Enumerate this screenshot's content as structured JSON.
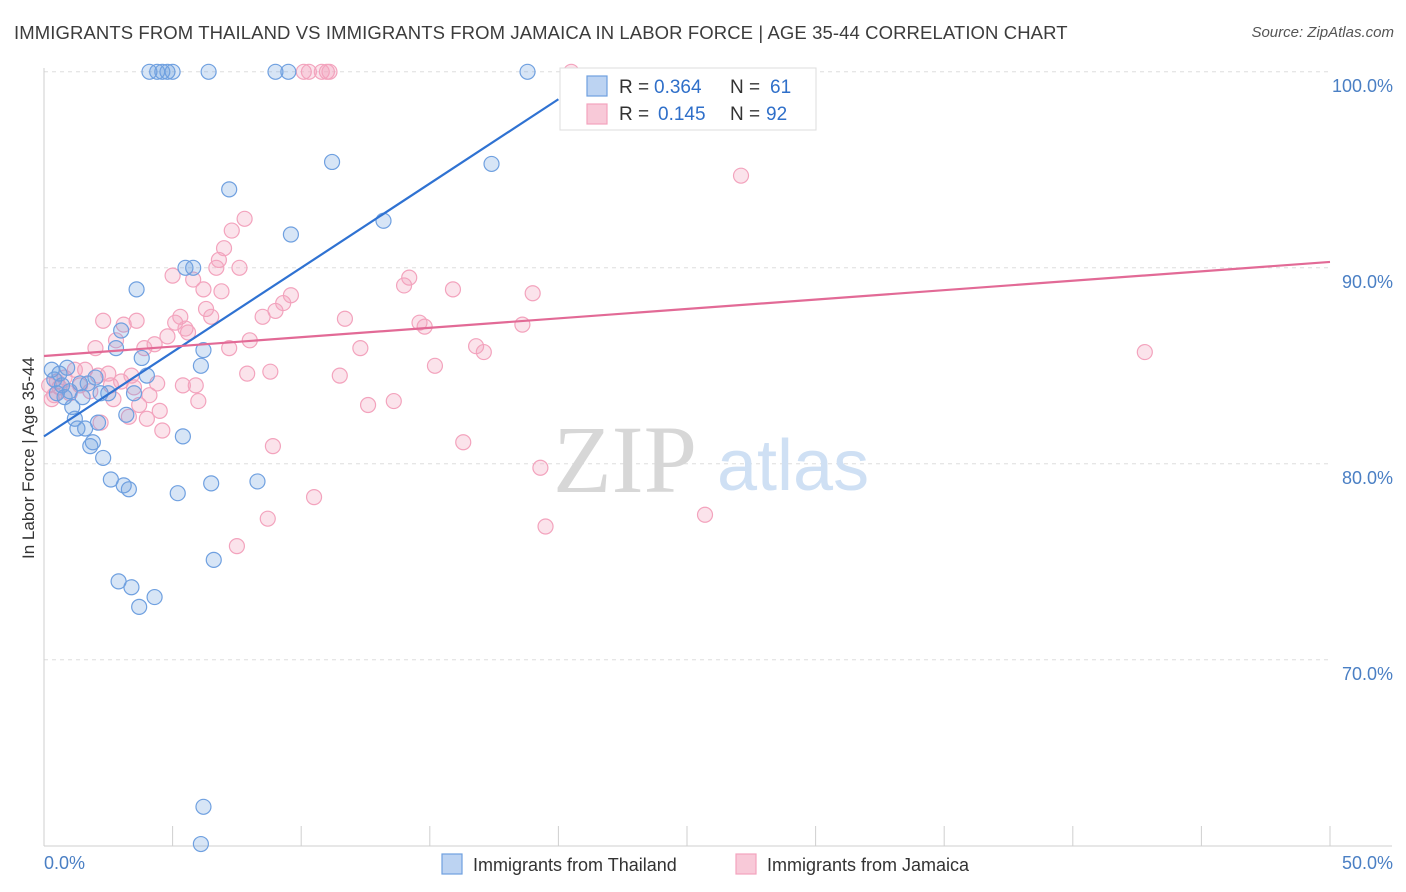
{
  "header": {
    "title": "IMMIGRANTS FROM THAILAND VS IMMIGRANTS FROM JAMAICA IN LABOR FORCE | AGE 35-44 CORRELATION CHART",
    "source": "Source: ZipAtlas.com"
  },
  "watermark": {
    "zip": "ZIP",
    "atlas": "atlas"
  },
  "chart_data": {
    "type": "scatter",
    "ylabel": "In Labor Force | Age 35-44",
    "xlim": [
      0,
      50
    ],
    "ylim": [
      60.5,
      100.5
    ],
    "x_tick_labels": [
      "0.0%",
      "50.0%"
    ],
    "y_ticks": [
      {
        "value": 100,
        "label": "100.0%"
      },
      {
        "value": 90,
        "label": "90.0%"
      },
      {
        "value": 80,
        "label": "80.0%"
      },
      {
        "value": 70,
        "label": "70.0%"
      }
    ],
    "colors": {
      "thailand": "#6fa0e0",
      "jamaica": "#f3a3bd",
      "thailand_line": "#2f72d2",
      "jamaica_line": "#e26a96",
      "tick_text": "#4a7fc4"
    },
    "legend": {
      "r_label": "R =",
      "n_label": "N =",
      "items": [
        {
          "r": "0.364",
          "n": "61"
        },
        {
          "r": "0.145",
          "n": "92"
        }
      ]
    },
    "series": [
      {
        "name": "Immigrants from Thailand",
        "color": "#6fa0e0",
        "trend": {
          "x0": 0,
          "y0": 81.4,
          "x1": 20,
          "y1": 98.6
        },
        "points": [
          [
            0.3,
            84.8
          ],
          [
            0.4,
            84.3
          ],
          [
            0.5,
            83.6
          ],
          [
            0.6,
            84.6
          ],
          [
            0.7,
            84.0
          ],
          [
            0.8,
            83.4
          ],
          [
            0.9,
            84.9
          ],
          [
            1.0,
            83.7
          ],
          [
            1.1,
            82.9
          ],
          [
            1.2,
            82.3
          ],
          [
            1.3,
            81.8
          ],
          [
            1.4,
            84.1
          ],
          [
            1.5,
            83.4
          ],
          [
            1.6,
            81.8
          ],
          [
            1.7,
            84.1
          ],
          [
            1.8,
            80.9
          ],
          [
            1.9,
            81.1
          ],
          [
            2.0,
            84.4
          ],
          [
            2.1,
            82.1
          ],
          [
            2.2,
            83.6
          ],
          [
            2.3,
            80.3
          ],
          [
            2.5,
            83.6
          ],
          [
            2.6,
            79.2
          ],
          [
            2.8,
            85.9
          ],
          [
            2.9,
            74.0
          ],
          [
            3.0,
            86.8
          ],
          [
            3.1,
            78.9
          ],
          [
            3.2,
            82.5
          ],
          [
            3.3,
            78.7
          ],
          [
            3.4,
            73.7
          ],
          [
            3.5,
            83.6
          ],
          [
            3.6,
            88.9
          ],
          [
            3.7,
            72.7
          ],
          [
            3.8,
            85.4
          ],
          [
            4.0,
            84.5
          ],
          [
            4.1,
            100
          ],
          [
            4.3,
            73.2
          ],
          [
            4.4,
            100
          ],
          [
            4.6,
            100
          ],
          [
            4.8,
            100
          ],
          [
            5.0,
            100
          ],
          [
            5.2,
            78.5
          ],
          [
            5.4,
            81.4
          ],
          [
            5.5,
            90.0
          ],
          [
            5.8,
            90.0
          ],
          [
            6.1,
            85.0
          ],
          [
            6.2,
            85.8
          ],
          [
            6.4,
            100
          ],
          [
            6.5,
            79.0
          ],
          [
            6.6,
            75.1
          ],
          [
            7.2,
            94.0
          ],
          [
            8.3,
            79.1
          ],
          [
            9.5,
            100
          ],
          [
            9.6,
            91.7
          ],
          [
            11.2,
            95.4
          ],
          [
            13.2,
            92.4
          ],
          [
            17.4,
            95.3
          ],
          [
            18.8,
            100
          ],
          [
            6.2,
            62.5
          ],
          [
            6.1,
            60.6
          ],
          [
            9.0,
            100
          ]
        ]
      },
      {
        "name": "Immigrants from Jamaica",
        "color": "#f3a3bd",
        "trend": {
          "x0": 0,
          "y0": 85.5,
          "x1": 50,
          "y1": 90.3
        },
        "points": [
          [
            0.2,
            84.0
          ],
          [
            0.4,
            83.5
          ],
          [
            0.5,
            84.2
          ],
          [
            0.6,
            83.9
          ],
          [
            0.8,
            84.4
          ],
          [
            1.0,
            83.6
          ],
          [
            1.2,
            84.8
          ],
          [
            1.4,
            84.0
          ],
          [
            1.6,
            84.8
          ],
          [
            1.8,
            83.7
          ],
          [
            2.0,
            85.9
          ],
          [
            2.1,
            84.5
          ],
          [
            2.2,
            82.1
          ],
          [
            2.3,
            87.3
          ],
          [
            2.5,
            84.6
          ],
          [
            2.6,
            84.0
          ],
          [
            2.7,
            83.3
          ],
          [
            2.8,
            86.3
          ],
          [
            3.0,
            84.2
          ],
          [
            3.1,
            87.1
          ],
          [
            3.3,
            82.4
          ],
          [
            3.4,
            84.5
          ],
          [
            3.5,
            83.9
          ],
          [
            3.6,
            87.3
          ],
          [
            3.7,
            83.0
          ],
          [
            3.9,
            85.9
          ],
          [
            4.0,
            82.3
          ],
          [
            4.1,
            83.5
          ],
          [
            4.3,
            86.1
          ],
          [
            4.4,
            84.1
          ],
          [
            4.5,
            82.7
          ],
          [
            4.6,
            81.7
          ],
          [
            4.8,
            86.5
          ],
          [
            5.0,
            89.6
          ],
          [
            5.1,
            87.2
          ],
          [
            5.3,
            87.5
          ],
          [
            5.4,
            84.0
          ],
          [
            5.5,
            86.9
          ],
          [
            5.6,
            86.7
          ],
          [
            5.8,
            89.4
          ],
          [
            5.9,
            84.0
          ],
          [
            6.0,
            83.2
          ],
          [
            6.2,
            88.9
          ],
          [
            6.3,
            87.9
          ],
          [
            6.5,
            87.5
          ],
          [
            6.7,
            90.0
          ],
          [
            6.8,
            90.4
          ],
          [
            6.9,
            88.8
          ],
          [
            7.0,
            91.0
          ],
          [
            7.2,
            85.9
          ],
          [
            7.3,
            91.9
          ],
          [
            7.5,
            75.8
          ],
          [
            7.6,
            90.0
          ],
          [
            7.8,
            92.5
          ],
          [
            7.9,
            84.6
          ],
          [
            8.0,
            86.3
          ],
          [
            8.5,
            87.5
          ],
          [
            8.7,
            77.2
          ],
          [
            8.8,
            84.7
          ],
          [
            8.9,
            80.9
          ],
          [
            9.0,
            87.8
          ],
          [
            9.3,
            88.2
          ],
          [
            9.6,
            88.6
          ],
          [
            10.1,
            100
          ],
          [
            10.3,
            100
          ],
          [
            10.5,
            78.3
          ],
          [
            11.0,
            100
          ],
          [
            11.1,
            100
          ],
          [
            11.5,
            84.5
          ],
          [
            11.7,
            87.4
          ],
          [
            12.3,
            85.9
          ],
          [
            12.6,
            83.0
          ],
          [
            13.6,
            83.2
          ],
          [
            14.0,
            89.1
          ],
          [
            14.2,
            89.5
          ],
          [
            14.6,
            87.2
          ],
          [
            14.8,
            87.0
          ],
          [
            15.2,
            85.0
          ],
          [
            15.9,
            88.9
          ],
          [
            16.3,
            81.1
          ],
          [
            16.8,
            86.0
          ],
          [
            17.1,
            85.7
          ],
          [
            18.6,
            87.1
          ],
          [
            19.0,
            88.7
          ],
          [
            19.3,
            79.8
          ],
          [
            19.5,
            76.8
          ],
          [
            20.5,
            100
          ],
          [
            25.7,
            77.4
          ],
          [
            27.1,
            94.7
          ],
          [
            42.8,
            85.7
          ],
          [
            0.3,
            83.3
          ],
          [
            10.8,
            100
          ]
        ]
      }
    ]
  }
}
